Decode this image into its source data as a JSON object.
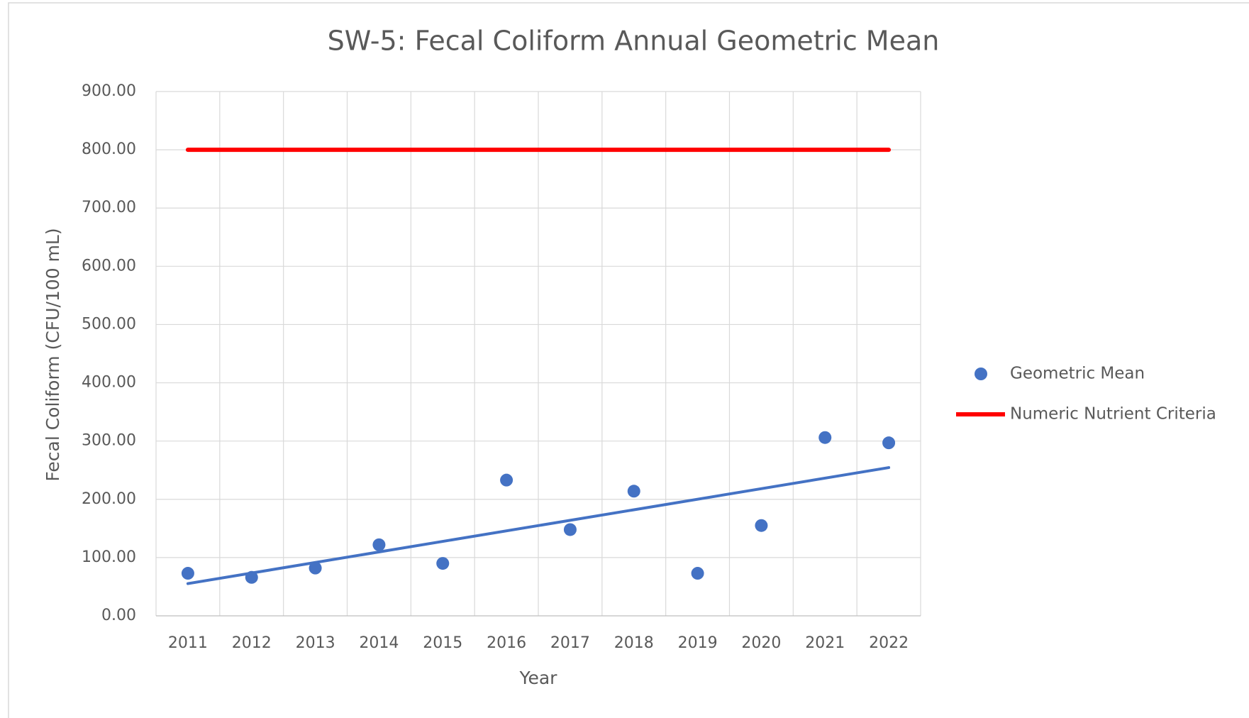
{
  "chart_data": {
    "type": "scatter",
    "title": "SW-5: Fecal Coliform Annual Geometric Mean",
    "x_label": "Year",
    "y_label": "Fecal Coliform (CFU/100 mL)",
    "categories": [
      "2011",
      "2012",
      "2013",
      "2014",
      "2015",
      "2016",
      "2017",
      "2018",
      "2019",
      "2020",
      "2021",
      "2022"
    ],
    "series": [
      {
        "name": "Geometric Mean",
        "color": "#4472c4",
        "type": "scatter",
        "trendline": "linear",
        "values": [
          73,
          66,
          82,
          122,
          90,
          233,
          148,
          214,
          73,
          155,
          306,
          297
        ]
      },
      {
        "name": "Numeric Nutrient Criteria",
        "color": "#ff0000",
        "type": "line",
        "values": [
          800,
          800,
          800,
          800,
          800,
          800,
          800,
          800,
          800,
          800,
          800,
          800
        ]
      }
    ],
    "ylim": [
      0,
      900
    ],
    "yticks": [
      {
        "value": 0,
        "label": "0.00"
      },
      {
        "value": 100,
        "label": "100.00"
      },
      {
        "value": 200,
        "label": "200.00"
      },
      {
        "value": 300,
        "label": "300.00"
      },
      {
        "value": 400,
        "label": "400.00"
      },
      {
        "value": 500,
        "label": "500.00"
      },
      {
        "value": 600,
        "label": "600.00"
      },
      {
        "value": 700,
        "label": "700.00"
      },
      {
        "value": 800,
        "label": "800.00"
      },
      {
        "value": 900,
        "label": "900.00"
      }
    ],
    "grid": true,
    "legend": "right"
  }
}
